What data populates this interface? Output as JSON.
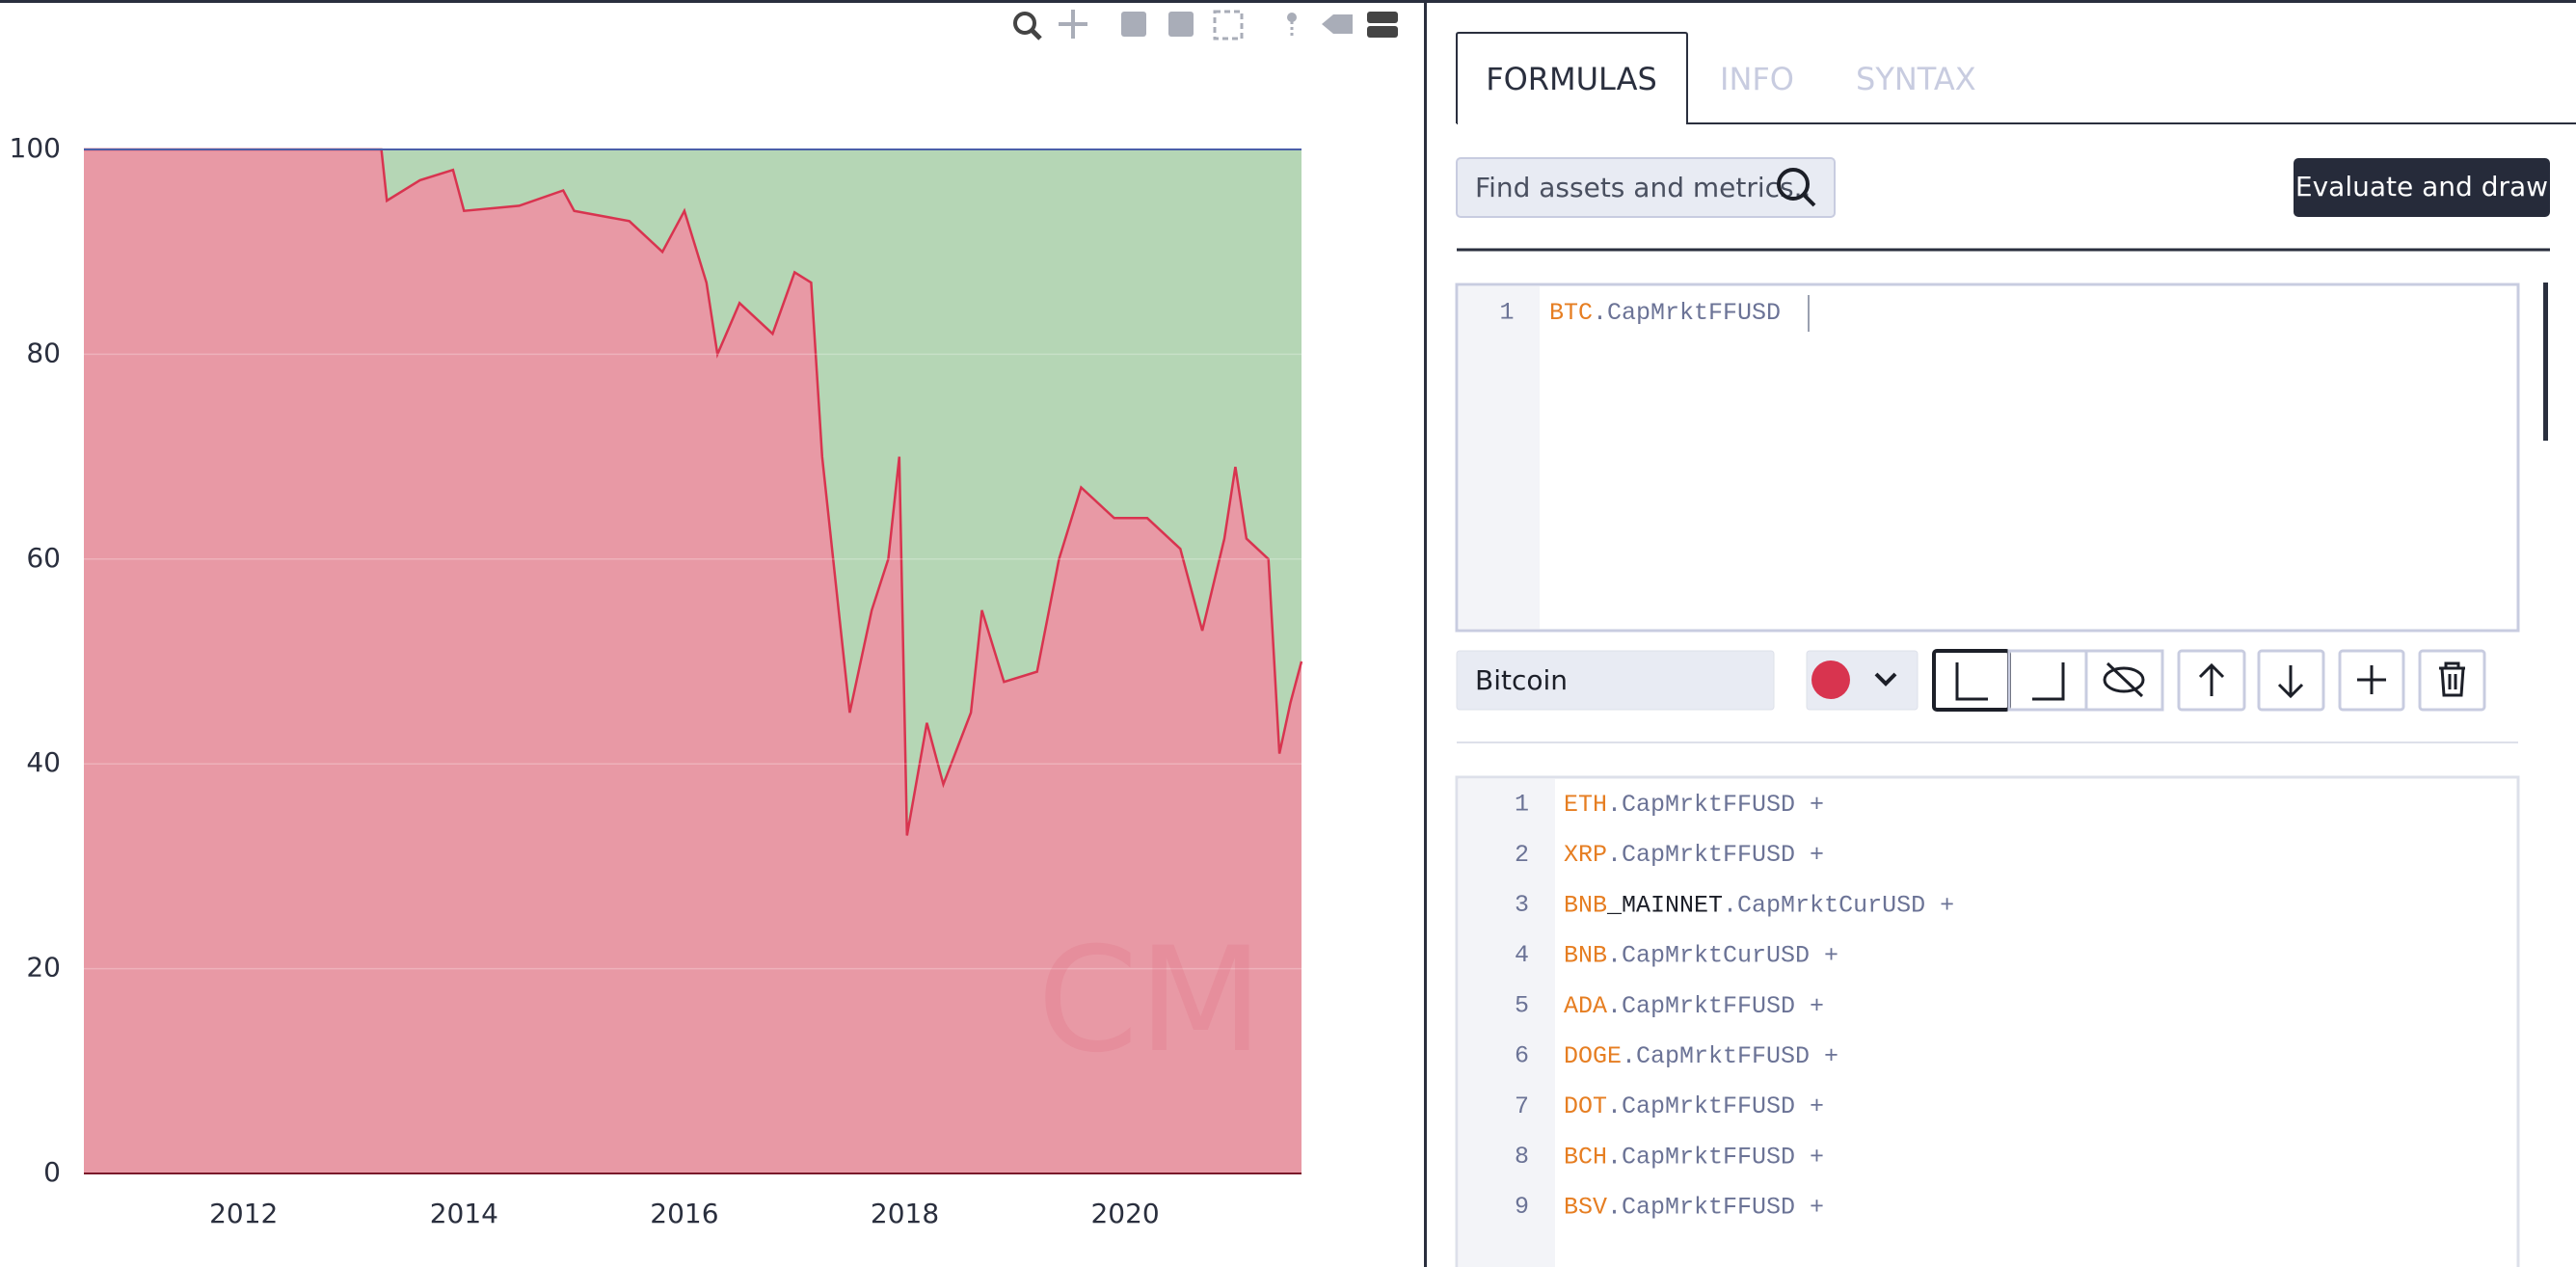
{
  "chart_data": {
    "type": "area",
    "x": [
      2010.55,
      2013.25,
      2013.3,
      2013.6,
      2013.9,
      2014.0,
      2014.5,
      2014.9,
      2015.0,
      2015.5,
      2015.8,
      2016.0,
      2016.2,
      2016.3,
      2016.5,
      2016.8,
      2017.0,
      2017.15,
      2017.25,
      2017.4,
      2017.5,
      2017.7,
      2017.85,
      2017.95,
      2018.02,
      2018.2,
      2018.35,
      2018.6,
      2018.7,
      2018.9,
      2019.2,
      2019.4,
      2019.6,
      2019.9,
      2020.2,
      2020.5,
      2020.7,
      2020.9,
      2021.0,
      2021.1,
      2021.3,
      2021.4,
      2021.5,
      2021.6
    ],
    "series": [
      {
        "name": "Bitcoin",
        "color": "#d8344f",
        "fill": "#e899a5",
        "values": [
          100,
          100,
          95,
          97,
          98,
          94,
          94.5,
          96,
          94,
          93,
          90,
          94,
          87,
          80,
          85,
          82,
          88,
          87,
          70,
          55,
          45,
          55,
          60,
          70,
          33,
          44,
          38,
          45,
          55,
          48,
          49,
          60,
          67,
          64,
          64,
          61,
          53,
          62,
          69,
          62,
          60,
          41,
          46,
          50
        ]
      },
      {
        "color": "#b5d6b5",
        "values": [
          0,
          0,
          5,
          3,
          2,
          6,
          5.5,
          4,
          6,
          7,
          10,
          6,
          13,
          20,
          15,
          18,
          12,
          13,
          30,
          45,
          55,
          45,
          40,
          30,
          67,
          56,
          62,
          55,
          45,
          52,
          51,
          40,
          33,
          36,
          36,
          39,
          47,
          38,
          31,
          38,
          40,
          59,
          54,
          50
        ]
      }
    ],
    "xlim": [
      2010.55,
      2021.6
    ],
    "xticks": [
      2012,
      2014,
      2016,
      2018,
      2020
    ],
    "ylim": [
      0,
      100
    ],
    "yticks": [
      0,
      20,
      40,
      60,
      80,
      100
    ],
    "grid": true,
    "watermark": "CM"
  },
  "tabs": [
    "FORMULAS",
    "INFO",
    "SYNTAX"
  ],
  "search_placeholder": "Find assets and metrics..",
  "evaluate_button": "Evaluate and draw",
  "formula_editor": {
    "lines": [
      {
        "number": 1,
        "asset": "BTC",
        "metric": ".CapMrktFFUSD"
      }
    ]
  },
  "secondary_editor": {
    "lines": [
      {
        "number": 1,
        "asset": "ETH",
        "metric": ".CapMrktFFUSD +"
      },
      {
        "number": 2,
        "asset": "XRP",
        "metric": ".CapMrktFFUSD +"
      },
      {
        "number": 3,
        "asset": "BNB",
        "suffix": "_MAINNET",
        "metric": ".CapMrktCurUSD +"
      },
      {
        "number": 4,
        "asset": "BNB",
        "metric": ".CapMrktCurUSD +"
      },
      {
        "number": 5,
        "asset": "ADA",
        "metric": ".CapMrktFFUSD +"
      },
      {
        "number": 6,
        "asset": "DOGE",
        "metric": ".CapMrktFFUSD +"
      },
      {
        "number": 7,
        "asset": "DOT",
        "metric": ".CapMrktFFUSD +"
      },
      {
        "number": 8,
        "asset": "BCH",
        "metric": ".CapMrktFFUSD +"
      },
      {
        "number": 9,
        "asset": "BSV",
        "metric": ".CapMrktFFUSD +"
      }
    ]
  }
}
